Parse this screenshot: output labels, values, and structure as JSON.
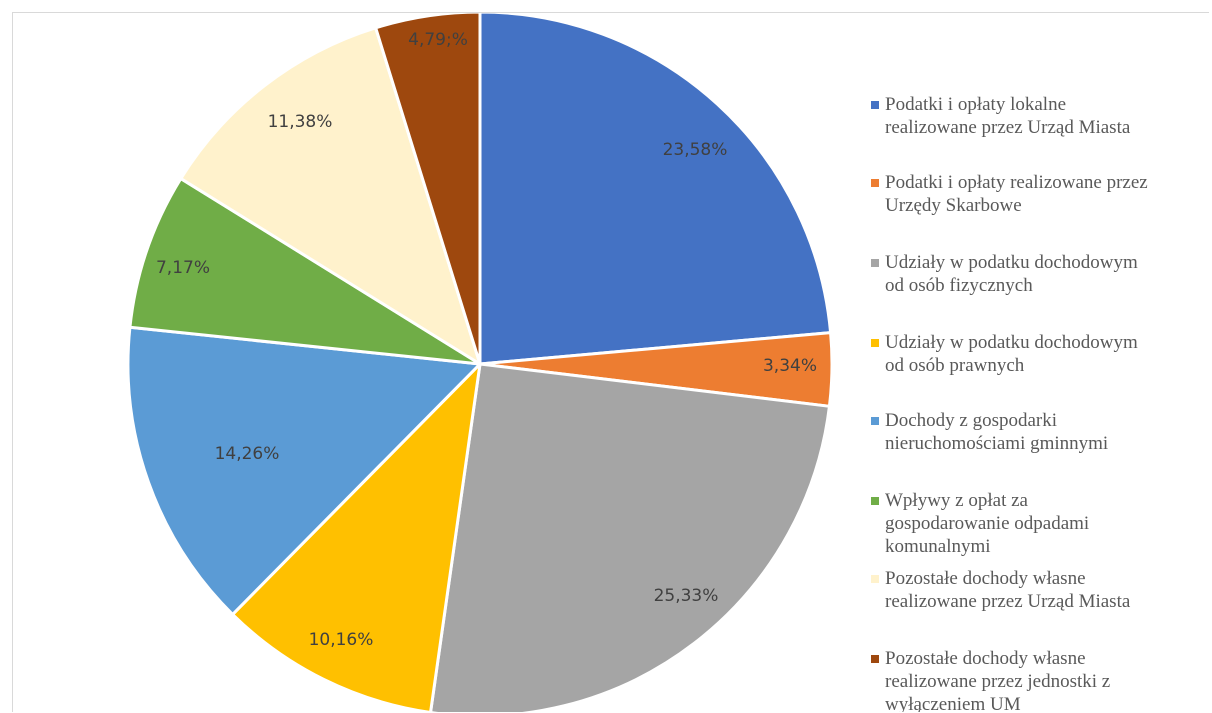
{
  "chart_data": {
    "type": "pie",
    "title": "",
    "slices": [
      {
        "name": "Podatki i opłaty lokalne\nrealizowane przez Urząd Miasta",
        "value": 23.58,
        "label": "23,58%",
        "color": "#4472c4"
      },
      {
        "name": "Podatki i opłaty realizowane przez\nUrzędy Skarbowe",
        "value": 3.34,
        "label": "3,34%",
        "color": "#ed7d31"
      },
      {
        "name": "Udziały w  podatku dochodowym\nod osób fizycznych",
        "value": 25.33,
        "label": "25,33%",
        "color": "#a5a5a5"
      },
      {
        "name": "Udziały w  podatku dochodowym\nod osób prawnych",
        "value": 10.16,
        "label": "10,16%",
        "color": "#ffc000"
      },
      {
        "name": "Dochody z gospodarki\nnieruchomościami gminnymi",
        "value": 14.26,
        "label": "14,26%",
        "color": "#5b9bd5"
      },
      {
        "name": "Wpływy z opłat za\ngospodarowanie odpadami\nkomunalnymi",
        "value": 7.17,
        "label": "7,17%",
        "color": "#70ad47"
      },
      {
        "name": "Pozostałe dochody własne\nrealizowane przez Urząd Miasta",
        "value": 11.38,
        "label": "11,38%",
        "color": "#fff2cc"
      },
      {
        "name": "Pozostałe dochody własne\nrealizowane przez jednostki z\nwyłączeniem UM",
        "value": 4.79,
        "label": "4,79;%",
        "color": "#9e480e"
      }
    ],
    "start_angle": "12 o'clock",
    "direction": "clockwise",
    "legend_position": "right"
  }
}
